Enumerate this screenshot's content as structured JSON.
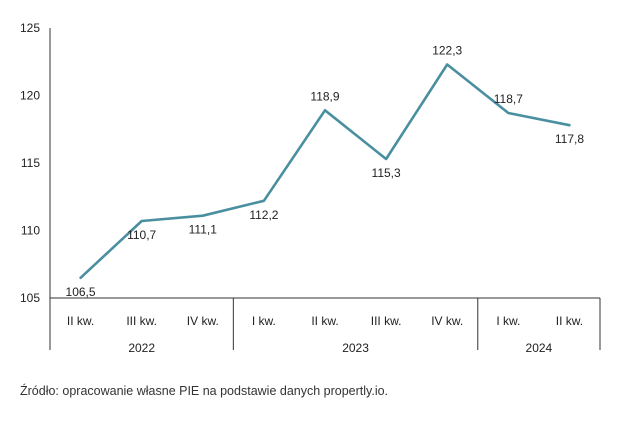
{
  "chart_data": {
    "type": "line",
    "title": "",
    "xlabel": "",
    "ylabel": "",
    "ylim": [
      105,
      125
    ],
    "yticks": [
      105,
      110,
      115,
      120,
      125
    ],
    "grid": false,
    "categories": [
      "II kw.",
      "III kw.",
      "IV kw.",
      "I kw.",
      "II kw.",
      "III kw.",
      "IV kw.",
      "I kw.",
      "II kw."
    ],
    "years": [
      {
        "label": "2022",
        "start": 0,
        "end": 2
      },
      {
        "label": "2023",
        "start": 3,
        "end": 6
      },
      {
        "label": "2024",
        "start": 7,
        "end": 8
      }
    ],
    "series": [
      {
        "values": [
          106.5,
          110.7,
          111.1,
          112.2,
          118.9,
          115.3,
          122.3,
          118.7,
          117.8
        ],
        "labels": [
          "106,5",
          "110,7",
          "111,1",
          "112,2",
          "118,9",
          "115,3",
          "122,3",
          "118,7",
          "117,8"
        ],
        "color": "#4a8fa0"
      }
    ]
  },
  "source": "Źródło: opracowanie własne PIE na podstawie danych propertly.io."
}
